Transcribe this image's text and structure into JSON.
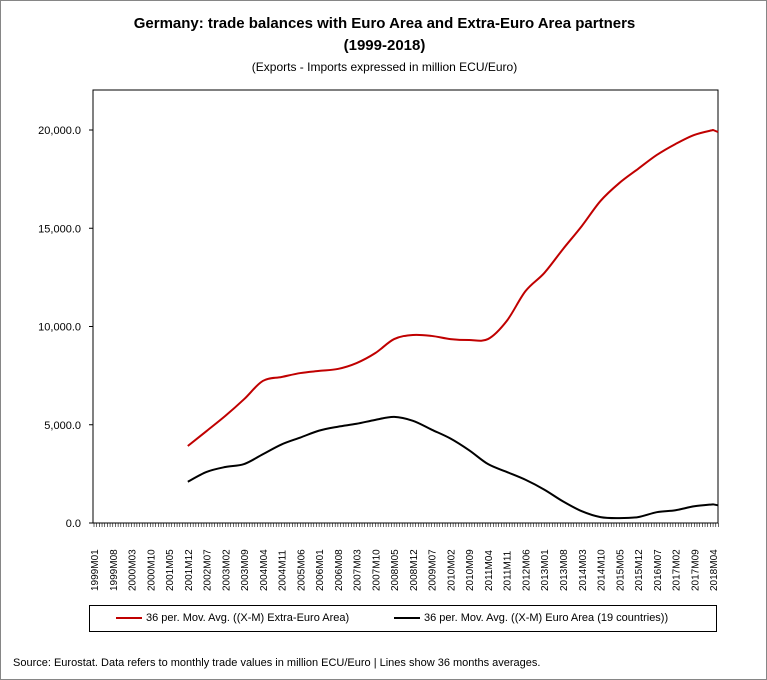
{
  "chart_data": {
    "type": "line",
    "title": "Germany: trade balances with Euro Area and Extra-Euro Area partners",
    "title_line2": "(1999-2018)",
    "subtitle": "(Exports - Imports expressed in million ECU/Euro)",
    "xlabel": "",
    "ylabel": "",
    "ylim": [
      0,
      22000
    ],
    "y_ticks": [
      "0.0",
      "5,000.0",
      "10,000.0",
      "15,000.0",
      "20,000.0"
    ],
    "y_tick_values": [
      0,
      5000,
      10000,
      15000,
      20000
    ],
    "x_tick_labels": [
      "1999M01",
      "1999M08",
      "2000M03",
      "2000M10",
      "2001M05",
      "2001M12",
      "2002M07",
      "2003M02",
      "2003M09",
      "2004M04",
      "2004M11",
      "2005M06",
      "2006M01",
      "2006M08",
      "2007M03",
      "2007M10",
      "2008M05",
      "2008M12",
      "2009M07",
      "2010M02",
      "2010M09",
      "2011M04",
      "2011M11",
      "2012M06",
      "2013M01",
      "2013M08",
      "2014M03",
      "2014M10",
      "2015M05",
      "2015M12",
      "2016M07",
      "2017M02",
      "2017M09",
      "2018M04"
    ],
    "grid": false,
    "legend_placement": "bottom",
    "x": [
      "2001M12",
      "2002M07",
      "2003M02",
      "2003M09",
      "2004M04",
      "2004M11",
      "2005M06",
      "2006M01",
      "2006M08",
      "2007M03",
      "2007M10",
      "2008M05",
      "2008M12",
      "2009M07",
      "2010M02",
      "2010M09",
      "2011M04",
      "2011M11",
      "2012M06",
      "2013M01",
      "2013M08",
      "2014M03",
      "2014M10",
      "2015M05",
      "2015M12",
      "2016M07",
      "2017M02",
      "2017M09",
      "2018M04"
    ],
    "series": [
      {
        "name": "36 per. Mov. Avg. ((X-M) Extra-Euro Area)",
        "color": "#c00000",
        "values": [
          3920,
          4680,
          5450,
          6300,
          7230,
          7430,
          7630,
          7740,
          7840,
          8140,
          8650,
          9360,
          9570,
          9520,
          9360,
          9310,
          9360,
          10280,
          11800,
          12720,
          13940,
          15110,
          16390,
          17300,
          18020,
          18730,
          19290,
          19750,
          20000
        ]
      },
      {
        "name": "36 per. Mov. Avg. ((X-M) Euro Area (19 countries))",
        "color": "#000000",
        "values": [
          2100,
          2600,
          2850,
          3000,
          3500,
          4000,
          4350,
          4700,
          4900,
          5050,
          5250,
          5400,
          5200,
          4750,
          4300,
          3700,
          3000,
          2600,
          2200,
          1700,
          1100,
          600,
          300,
          250,
          300,
          550,
          650,
          850,
          950
        ]
      }
    ]
  },
  "source": "Source: Eurostat. Data refers to monthly trade values in million ECU/Euro | Lines show 36 months averages."
}
